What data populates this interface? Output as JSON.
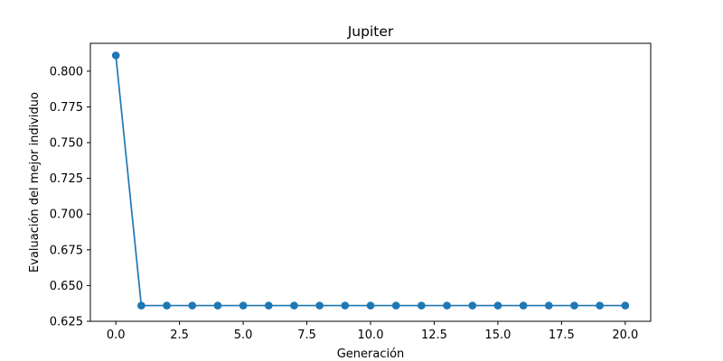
{
  "chart_data": {
    "type": "line",
    "title": "Jupiter",
    "xlabel": "Generación",
    "ylabel": "Evaluación del mejor individuo",
    "x": [
      0,
      1,
      2,
      3,
      4,
      5,
      6,
      7,
      8,
      9,
      10,
      11,
      12,
      13,
      14,
      15,
      16,
      17,
      18,
      19,
      20
    ],
    "series": [
      {
        "values": [
          0.811,
          0.636,
          0.636,
          0.636,
          0.636,
          0.636,
          0.636,
          0.636,
          0.636,
          0.636,
          0.636,
          0.636,
          0.636,
          0.636,
          0.636,
          0.636,
          0.636,
          0.636,
          0.636,
          0.636,
          0.636
        ],
        "color": "#1f77b4",
        "marker": "circle"
      }
    ],
    "xlim": [
      -1,
      21
    ],
    "ylim": [
      0.625,
      0.8195
    ],
    "xticks": [
      0,
      2.5,
      5,
      7.5,
      10,
      12.5,
      15,
      17.5,
      20
    ],
    "xtick_labels": [
      "0.0",
      "2.5",
      "5.0",
      "7.5",
      "10.0",
      "12.5",
      "15.0",
      "17.5",
      "20.0"
    ],
    "yticks": [
      0.625,
      0.65,
      0.675,
      0.7,
      0.725,
      0.75,
      0.775,
      0.8
    ],
    "ytick_labels": [
      "0.625",
      "0.650",
      "0.675",
      "0.700",
      "0.725",
      "0.750",
      "0.775",
      "0.800"
    ],
    "grid": false,
    "legend": false
  }
}
